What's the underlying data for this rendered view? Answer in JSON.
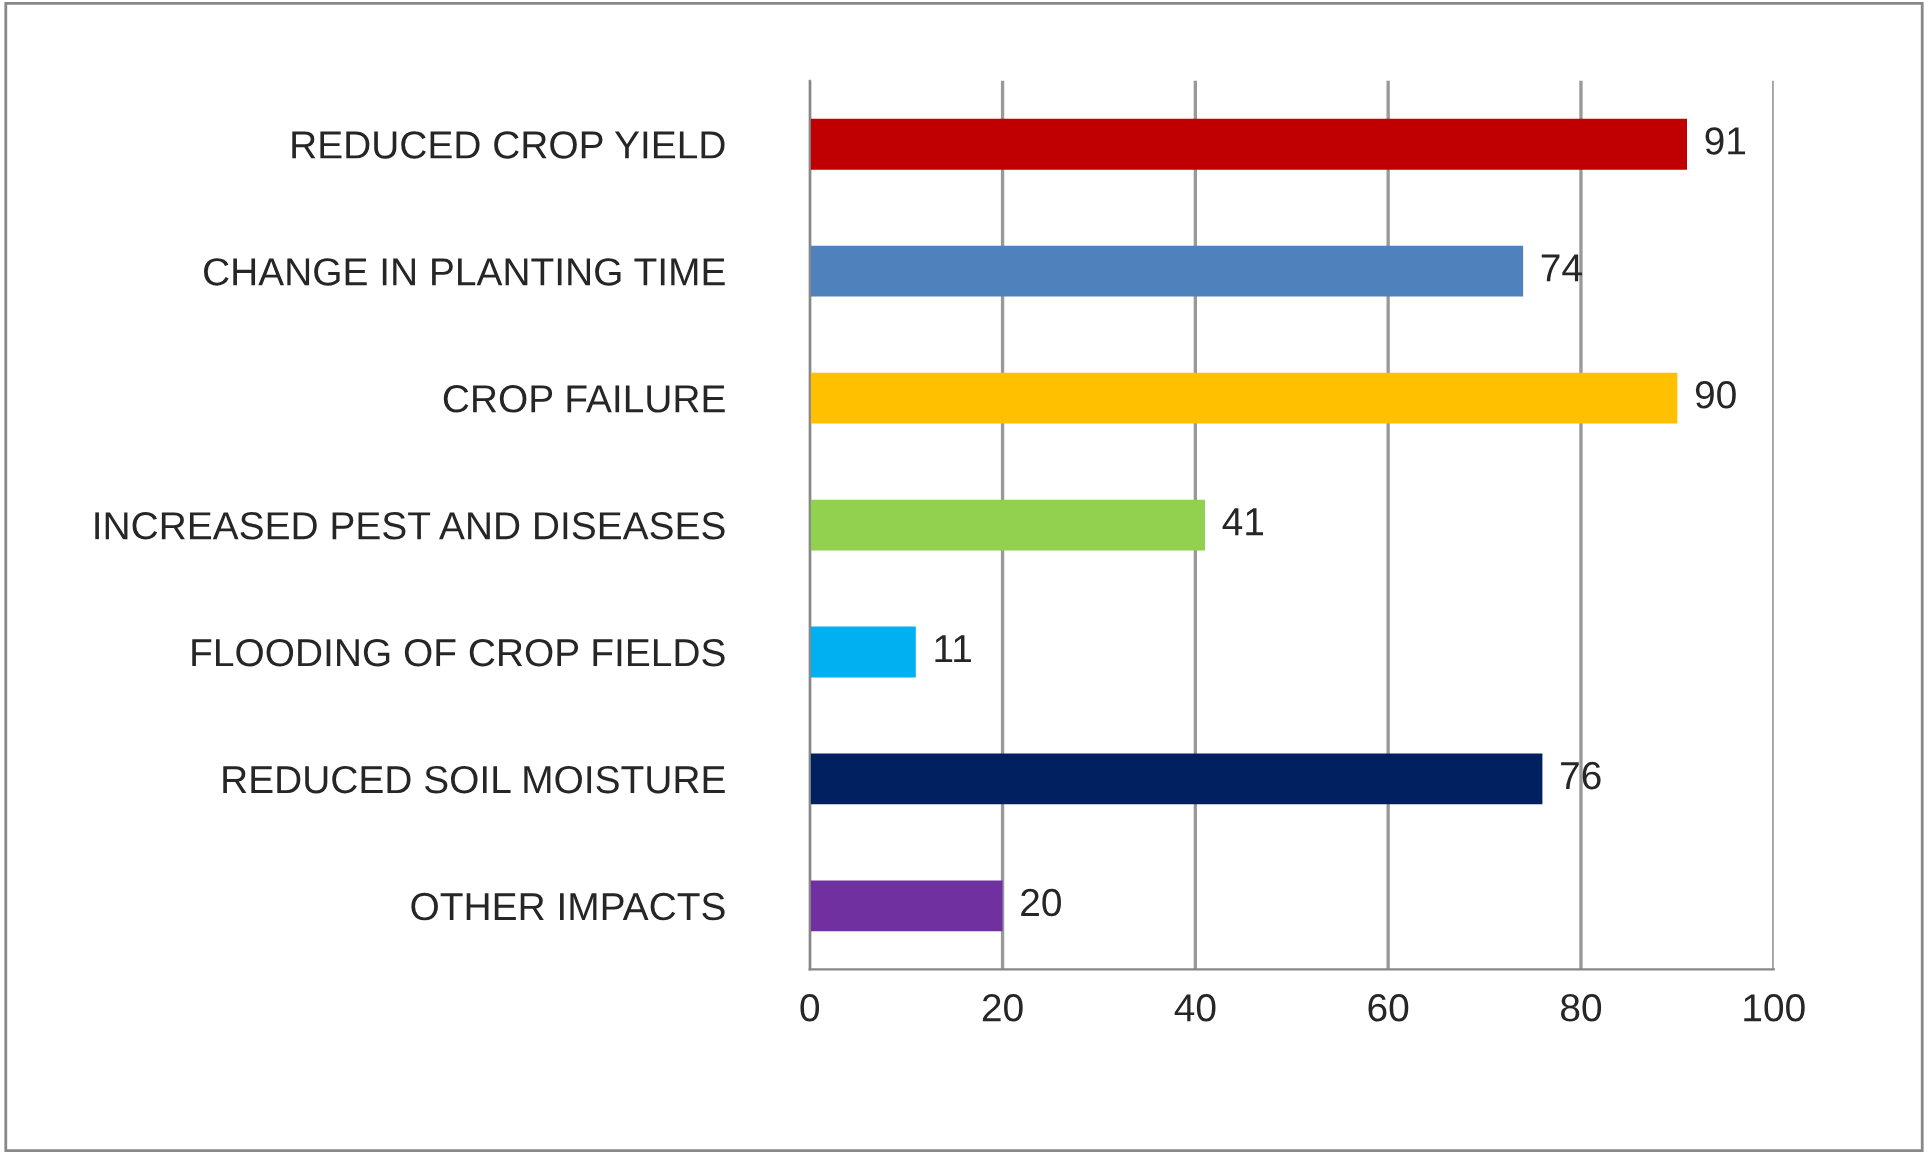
{
  "chart_data": {
    "type": "bar",
    "orientation": "horizontal",
    "categories": [
      "REDUCED CROP YIELD",
      "CHANGE IN PLANTING TIME",
      "CROP FAILURE",
      "INCREASED PEST AND DISEASES",
      "FLOODING OF CROP FIELDS",
      "REDUCED SOIL MOISTURE",
      "OTHER IMPACTS"
    ],
    "values": [
      91,
      74,
      90,
      41,
      11,
      76,
      20
    ],
    "colors": [
      "#c00000",
      "#4f81bd",
      "#ffc000",
      "#92d050",
      "#00b0f0",
      "#002060",
      "#7030a0"
    ],
    "xlim": [
      0,
      100
    ],
    "xticks": [
      0,
      20,
      40,
      60,
      80,
      100
    ],
    "grid": "x",
    "data_labels": true,
    "legend": false
  }
}
